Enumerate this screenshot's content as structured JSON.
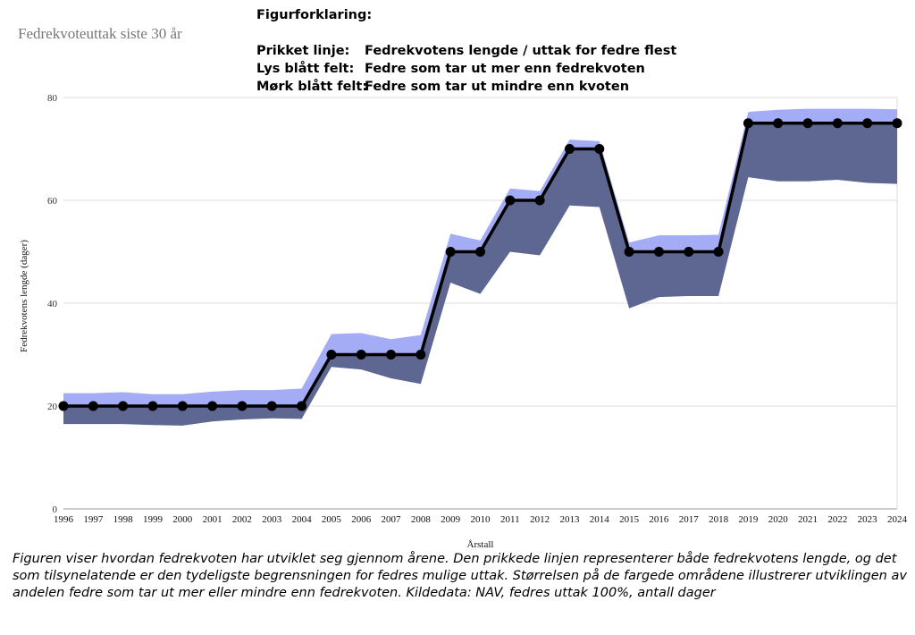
{
  "title": "Fedrekvoteuttak siste 30 år",
  "legend": {
    "heading": "Figurforklaring:",
    "rows": [
      {
        "key": "Prikket linje:",
        "desc": "Fedrekvotens lengde / uttak for fedre flest"
      },
      {
        "key": "Lys blått felt:",
        "desc": "Fedre som tar ut mer enn fedrekvoten"
      },
      {
        "key": "Mørk blått felt:",
        "desc": "Fedre som tar ut mindre enn kvoten"
      }
    ]
  },
  "caption": "Figuren viser hvordan fedrekvoten har utviklet seg gjennom årene. Den prikkede linjen representerer både fedrekvotens lengde, og det som tilsynelatende er den tydeligste begrensningen for fedres mulige uttak. Størrelsen på de fargede områdene illustrerer utviklingen av andelen fedre som tar ut mer eller mindre enn fedrekvoten. Kildedata: NAV, fedres uttak 100%, antall dager",
  "colors": {
    "light_band": "#a3acf5",
    "dark_band": "#5d6792",
    "line": "#000000",
    "grid": "#dddddd"
  },
  "chart_data": {
    "type": "line",
    "xlabel": "Årstall",
    "ylabel": "Fedrekvotens lengde (dager)",
    "ylim": [
      0,
      80
    ],
    "yticks": [
      0,
      20,
      40,
      60,
      80
    ],
    "grid": true,
    "x": [
      1996,
      1997,
      1998,
      1999,
      2000,
      2001,
      2002,
      2003,
      2004,
      2005,
      2006,
      2007,
      2008,
      2009,
      2010,
      2011,
      2012,
      2013,
      2014,
      2015,
      2016,
      2017,
      2018,
      2019,
      2020,
      2021,
      2022,
      2023,
      2024
    ],
    "series": [
      {
        "kind": "line",
        "values": [
          20,
          20,
          20,
          20,
          20,
          20,
          20,
          20,
          20,
          30,
          30,
          30,
          30,
          50,
          50,
          60,
          60,
          70,
          70,
          50,
          50,
          50,
          50,
          75,
          75,
          75,
          75,
          75,
          75
        ]
      },
      {
        "kind": "upper_band",
        "values": [
          22.5,
          22.5,
          22.7,
          22.3,
          22.3,
          22.8,
          23.1,
          23.1,
          23.4,
          34.0,
          34.2,
          33.0,
          33.8,
          53.5,
          52.2,
          62.3,
          61.8,
          71.8,
          71.5,
          51.8,
          53.2,
          53.2,
          53.3,
          77.2,
          77.6,
          77.8,
          77.8,
          77.8,
          77.7
        ]
      },
      {
        "kind": "lower_band",
        "values": [
          16.5,
          16.5,
          16.5,
          16.3,
          16.2,
          17.0,
          17.4,
          17.6,
          17.5,
          27.6,
          27.1,
          25.4,
          24.3,
          44.0,
          41.8,
          50.0,
          49.3,
          59.0,
          58.7,
          39.0,
          41.2,
          41.4,
          41.4,
          64.5,
          63.7,
          63.7,
          64.0,
          63.4,
          63.2
        ]
      }
    ]
  }
}
